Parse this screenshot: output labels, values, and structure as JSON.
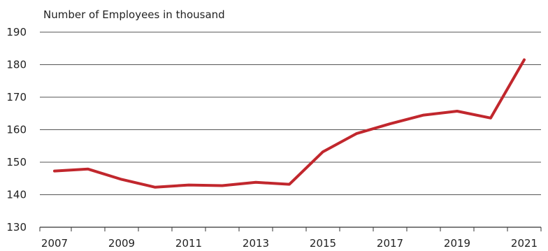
{
  "chart_data": {
    "type": "line",
    "title": "",
    "ylabel": "Number of Employees in thousand",
    "xlabel": "",
    "x": [
      2007,
      2008,
      2009,
      2010,
      2011,
      2012,
      2013,
      2014,
      2015,
      2016,
      2017,
      2018,
      2019,
      2020,
      2021
    ],
    "x_tick_labels": [
      "2007",
      "2009",
      "2011",
      "2013",
      "2015",
      "2017",
      "2019",
      "2021"
    ],
    "y_ticks": [
      130,
      140,
      150,
      160,
      170,
      180,
      190
    ],
    "ylim": [
      130,
      190
    ],
    "grid": "horizontal",
    "legend": "none",
    "series": [
      {
        "values": [
          147.3,
          147.9,
          144.7,
          142.3,
          143.0,
          142.8,
          143.8,
          143.2,
          153.2,
          158.8,
          161.8,
          164.5,
          165.7,
          163.6,
          181.5
        ],
        "color": "#c1272d"
      }
    ]
  }
}
